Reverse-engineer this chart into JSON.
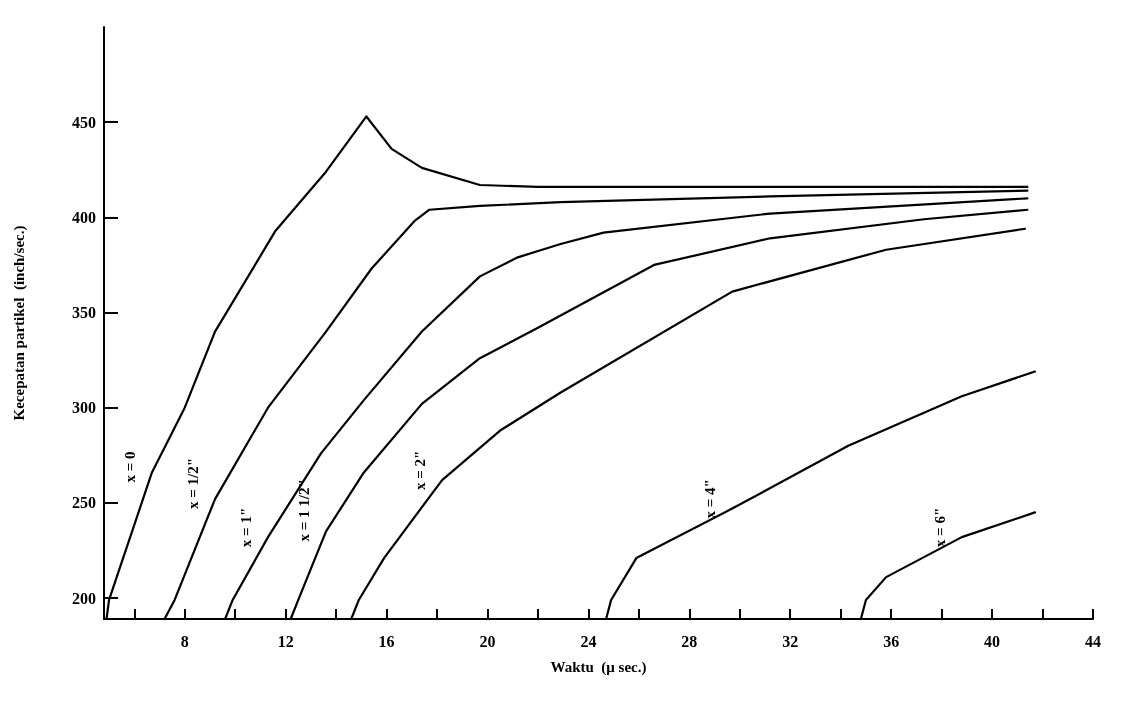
{
  "chart_data": {
    "type": "line",
    "xlabel": "Waktu  (μ sec.)",
    "ylabel": "Kecepatan partikel  (inch/sec.)",
    "xlim": [
      4.8,
      44
    ],
    "ylim": [
      189,
      500
    ],
    "xticks": [
      {
        "value": 6,
        "label": null
      },
      8,
      {
        "value": 10,
        "label": null
      },
      12,
      {
        "value": 14,
        "label": null
      },
      16,
      {
        "value": 18,
        "label": null
      },
      20,
      {
        "value": 22,
        "label": null
      },
      24,
      {
        "value": 26,
        "label": null
      },
      28,
      {
        "value": 30,
        "label": null
      },
      32,
      {
        "value": 34,
        "label": null
      },
      36,
      {
        "value": 38,
        "label": null
      },
      40,
      {
        "value": 42,
        "label": null
      },
      44
    ],
    "yticks": [
      200,
      250,
      300,
      350,
      400,
      450
    ],
    "grid": false,
    "legend": false,
    "marker": "none",
    "line_style": "solid",
    "series": [
      {
        "name": "x = 0",
        "color": "#000000",
        "x": [
          4.9,
          5.0,
          6.7,
          8.0,
          9.2,
          11.6,
          13.6,
          15.2,
          16.2,
          17.4,
          19.7,
          22.0,
          30.0,
          41.4
        ],
        "values": [
          189,
          199,
          266,
          300,
          340,
          393,
          424,
          453,
          436,
          426,
          417,
          416,
          416,
          416
        ]
      },
      {
        "name": "x = 1/2\"",
        "color": "#000000",
        "x": [
          7.2,
          7.6,
          9.2,
          11.3,
          13.6,
          15.4,
          17.1,
          17.7,
          19.7,
          22.9,
          31.2,
          41.4
        ],
        "values": [
          189,
          199,
          252,
          300,
          340,
          373,
          398,
          404,
          406,
          408,
          411,
          414
        ]
      },
      {
        "name": "x = 1\"",
        "color": "#000000",
        "x": [
          9.6,
          9.9,
          11.3,
          13.4,
          15.1,
          17.4,
          19.7,
          21.2,
          22.9,
          24.6,
          31.2,
          41.4
        ],
        "values": [
          189,
          199,
          232,
          276,
          304,
          340,
          369,
          379,
          386,
          392,
          402,
          410
        ]
      },
      {
        "name": "x = 1 1/2\"",
        "color": "#000000",
        "x": [
          12.2,
          12.5,
          13.6,
          15.1,
          17.4,
          19.7,
          22.0,
          26.6,
          31.2,
          37.3,
          41.4
        ],
        "values": [
          189,
          199,
          235,
          266,
          302,
          326,
          342,
          375,
          389,
          399,
          404
        ]
      },
      {
        "name": "x = 2\"",
        "color": "#000000",
        "x": [
          14.6,
          14.9,
          15.9,
          18.2,
          20.5,
          22.9,
          29.7,
          35.8,
          41.3
        ],
        "values": [
          189,
          199,
          221,
          262,
          288,
          308,
          361,
          383,
          394
        ]
      },
      {
        "name": "x = 4\"",
        "color": "#000000",
        "x": [
          24.7,
          24.9,
          25.9,
          29.7,
          34.3,
          38.8,
          41.7
        ],
        "values": [
          189,
          199,
          221,
          247,
          280,
          306,
          319
        ]
      },
      {
        "name": "x = 6\"",
        "color": "#000000",
        "x": [
          34.8,
          35.0,
          35.8,
          38.8,
          41.7
        ],
        "values": [
          189,
          199,
          211,
          232,
          245
        ]
      }
    ]
  }
}
